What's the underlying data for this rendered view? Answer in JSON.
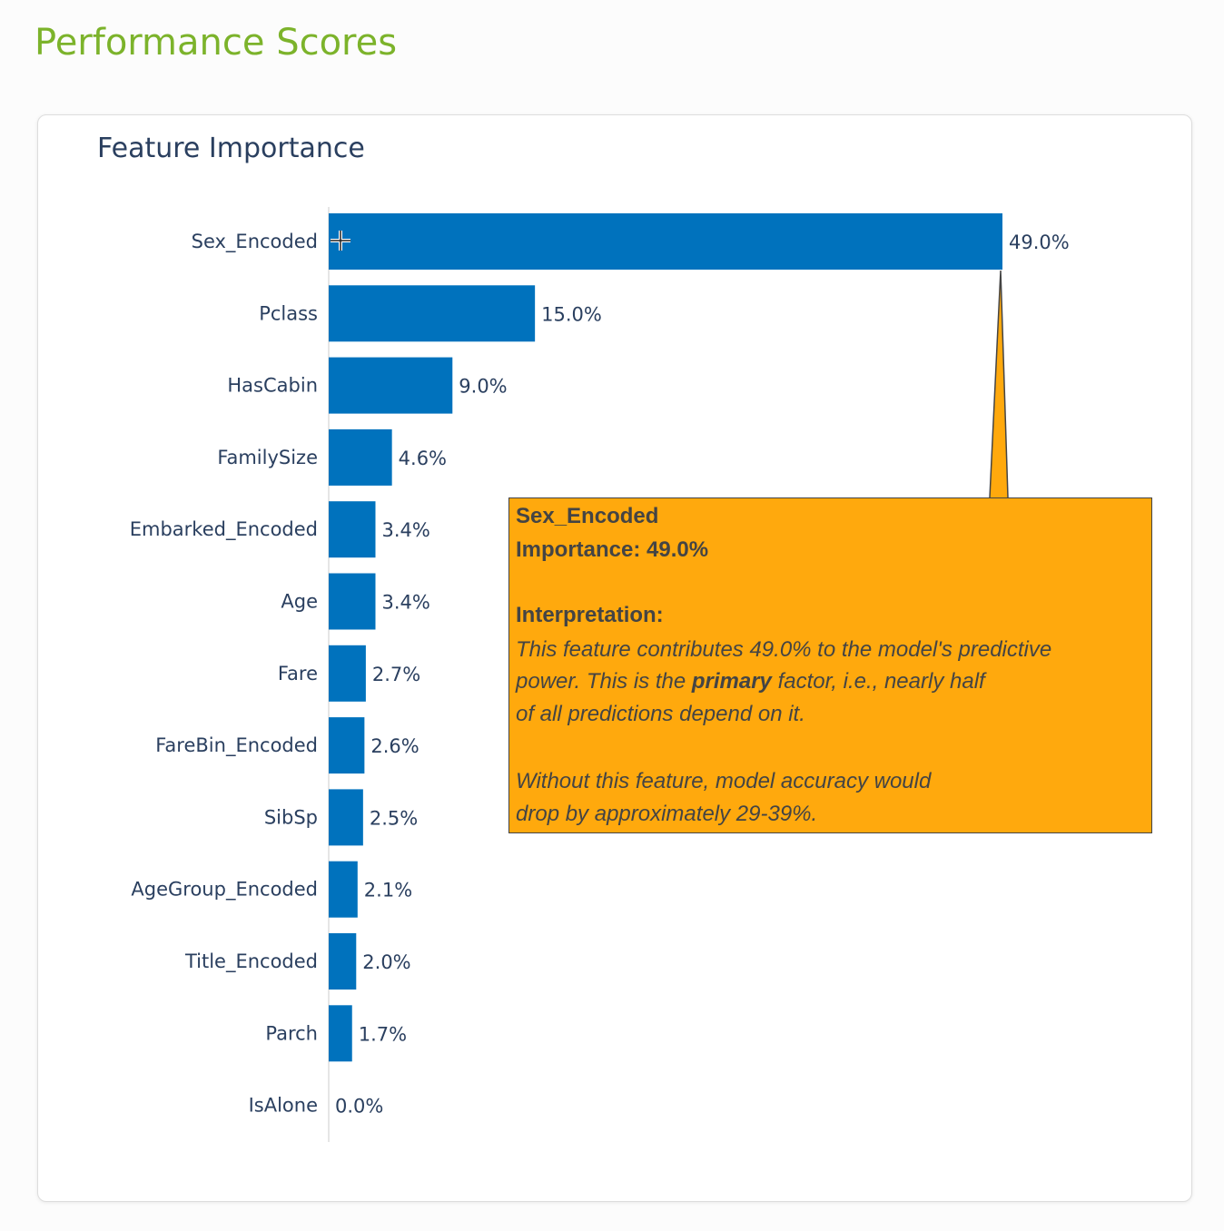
{
  "page": {
    "title": "Performance Scores"
  },
  "chart_data": {
    "type": "bar",
    "orientation": "horizontal",
    "title": "Feature Importance",
    "categories": [
      "Sex_Encoded",
      "Pclass",
      "HasCabin",
      "FamilySize",
      "Embarked_Encoded",
      "Age",
      "Fare",
      "FareBin_Encoded",
      "SibSp",
      "AgeGroup_Encoded",
      "Title_Encoded",
      "Parch",
      "IsAlone"
    ],
    "values": [
      49.0,
      15.0,
      9.0,
      4.6,
      3.4,
      3.4,
      2.7,
      2.6,
      2.5,
      2.1,
      2.0,
      1.7,
      0.0
    ],
    "labels": [
      "49.0%",
      "15.0%",
      "9.0%",
      "4.6%",
      "3.4%",
      "3.4%",
      "2.7%",
      "2.6%",
      "2.5%",
      "2.1%",
      "2.0%",
      "1.7%",
      "0.0%"
    ],
    "xlim": [
      0,
      49.0
    ],
    "bar_color": "#0072bd",
    "grid": false
  },
  "tooltip": {
    "feature": "Sex_Encoded",
    "importance": "Importance: 49.0%",
    "interp_heading": "Interpretation:",
    "line1": "This feature contributes 49.0% to the model's predictive",
    "line2_pre": "power. This is the ",
    "line2_bold": "primary",
    "line2_post": " factor, i.e., nearly half",
    "line3": "of all predictions depend on it.",
    "line4": "Without this feature, model accuracy would",
    "line5": "drop by approximately 29-39%.",
    "bg_color": "#ffa90d"
  }
}
